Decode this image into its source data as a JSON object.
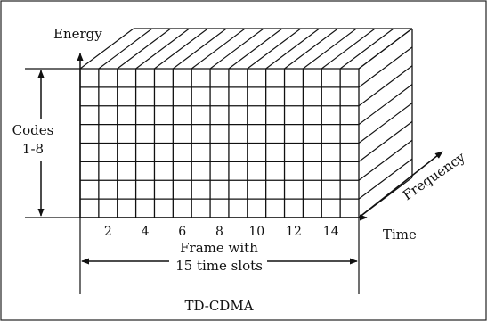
{
  "labels": {
    "energy": "Energy",
    "codes_line1": "Codes",
    "codes_line2": "1-8",
    "frequency": "Frequency",
    "time": "Time",
    "frame_line1": "Frame with",
    "frame_line2": "15 time slots",
    "caption": "TD-CDMA"
  },
  "time_slots": 15,
  "code_rows": 8,
  "tick_labels": [
    "2",
    "4",
    "6",
    "8",
    "10",
    "12",
    "14"
  ]
}
